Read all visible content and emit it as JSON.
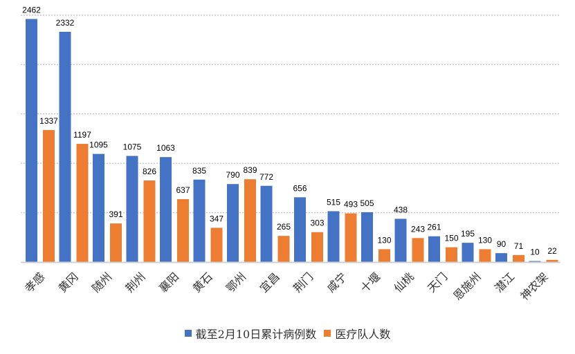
{
  "chart_data": {
    "type": "bar",
    "categories": [
      "孝感",
      "黄冈",
      "随州",
      "荆州",
      "襄阳",
      "黄石",
      "鄂州",
      "宜昌",
      "荆门",
      "咸宁",
      "十堰",
      "仙桃",
      "天门",
      "恩施州",
      "潜江",
      "神农架"
    ],
    "series": [
      {
        "name": "截至2月10日累计病例数",
        "color": "#4472C4",
        "values": [
          2462,
          2332,
          1095,
          1075,
          1063,
          835,
          790,
          772,
          656,
          515,
          505,
          438,
          261,
          195,
          90,
          10
        ]
      },
      {
        "name": "医疗队人数",
        "color": "#ED7D31",
        "values": [
          1337,
          1197,
          391,
          826,
          637,
          347,
          839,
          265,
          303,
          493,
          130,
          243,
          150,
          130,
          71,
          22
        ]
      }
    ],
    "ylim": [
      0,
      2500
    ],
    "ytick_step": 500,
    "grid": true,
    "data_labels": true,
    "legend_position": "bottom"
  }
}
